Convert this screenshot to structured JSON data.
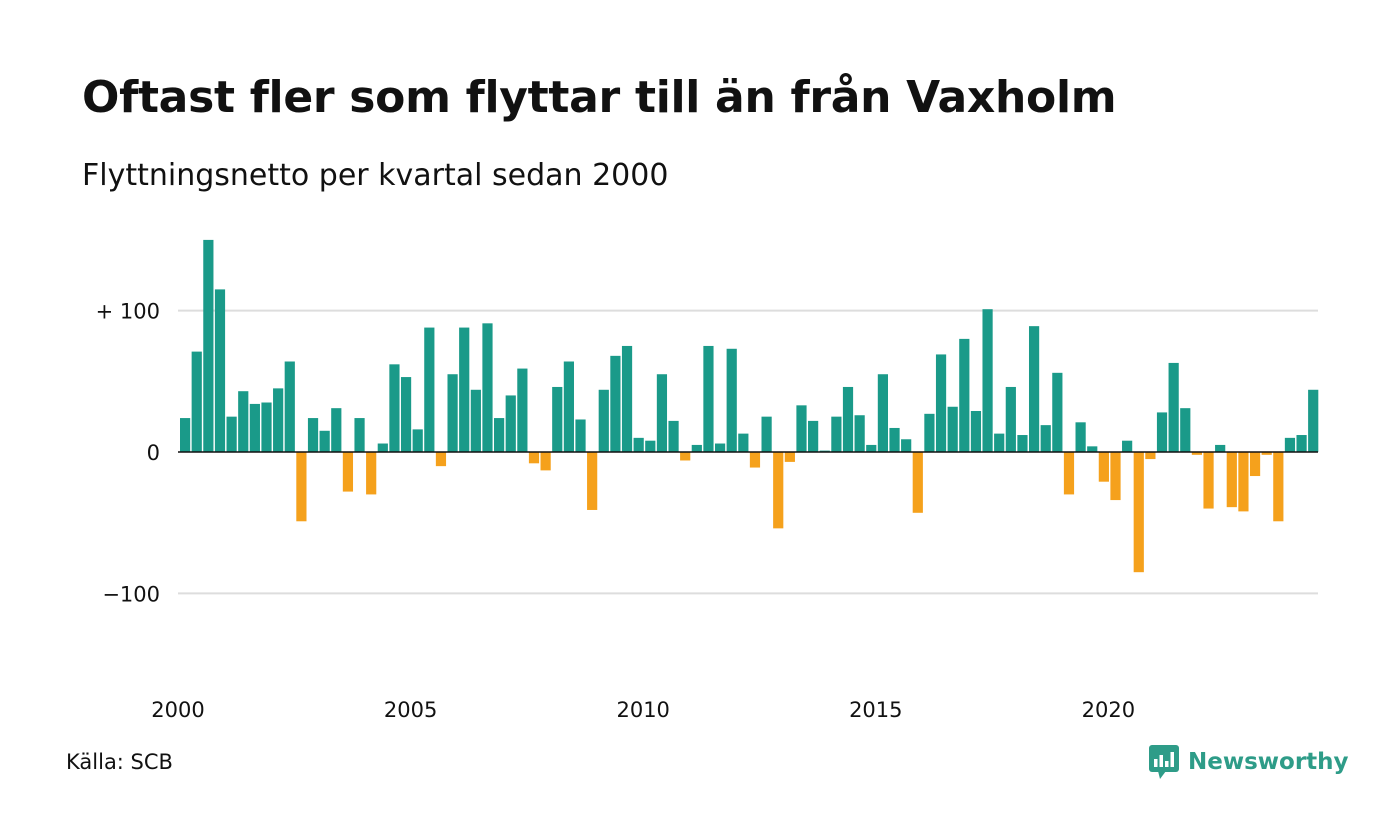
{
  "title": "Oftast fler som flyttar till än från Vaxholm",
  "subtitle": "Flyttningsnetto per kvartal sedan 2000",
  "source": "Källa: SCB",
  "brand": {
    "name": "Newsworthy",
    "icon": "newsworthy-chart-bubble-icon",
    "color": "#2e9c88"
  },
  "colors": {
    "positive": "#1a9a89",
    "negative": "#f5a11c",
    "gridline": "#dddddd",
    "zero_line": "#111111"
  },
  "chart_data": {
    "type": "bar",
    "x_start": "2000 Q1",
    "x_tick_labels": [
      "2000",
      "2005",
      "2010",
      "2015",
      "2020"
    ],
    "y_tick_labels": [
      "+ 100",
      "0",
      "−100"
    ],
    "y_ticks": [
      100,
      0,
      -100
    ],
    "ylim": [
      -165,
      150
    ],
    "grid": true,
    "values": [
      24,
      71,
      150,
      115,
      25,
      43,
      34,
      35,
      45,
      64,
      -49,
      24,
      15,
      31,
      -28,
      24,
      -30,
      6,
      62,
      53,
      16,
      88,
      -10,
      55,
      88,
      44,
      91,
      24,
      40,
      59,
      -8,
      -13,
      46,
      64,
      23,
      -41,
      44,
      68,
      75,
      10,
      8,
      55,
      22,
      -6,
      5,
      75,
      6,
      73,
      13,
      -11,
      25,
      -54,
      -7,
      33,
      22,
      1,
      25,
      46,
      26,
      5,
      55,
      17,
      9,
      -43,
      27,
      69,
      32,
      80,
      29,
      101,
      13,
      46,
      12,
      89,
      19,
      56,
      -30,
      21,
      4,
      -21,
      -34,
      8,
      -85,
      -5,
      28,
      63,
      31,
      -2,
      -40,
      5,
      -39,
      -42,
      -17,
      -2,
      -49,
      10,
      12,
      44
    ]
  }
}
